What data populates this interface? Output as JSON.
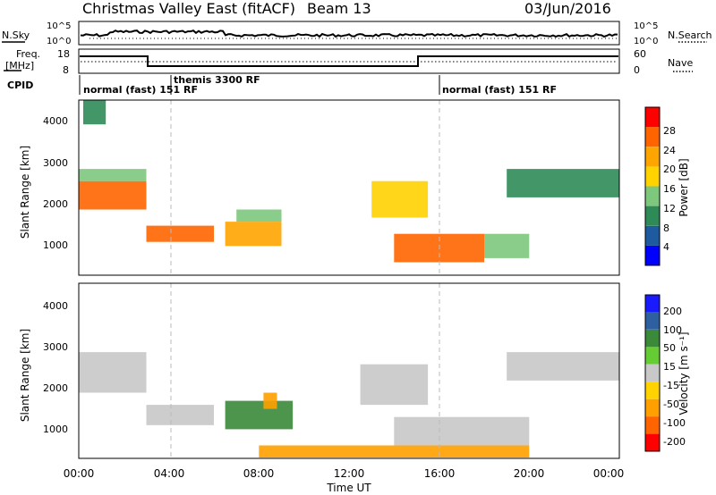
{
  "header": {
    "station": "Christmas Valley East (fitACF)",
    "beam": "Beam 13",
    "date": "03/Jun/2016"
  },
  "noise_panel": {
    "left_label": "N.Sky",
    "right_label": "N.Search",
    "left_ticks": [
      "10^5",
      "10^0"
    ],
    "right_ticks": [
      "10^5",
      "10^0"
    ]
  },
  "freq_panel": {
    "left_label_line1": "Freq.",
    "left_label_line2": "[MHz]",
    "right_label": "Nave",
    "left_ticks": [
      "18",
      "8"
    ],
    "right_ticks": [
      "60",
      "0"
    ]
  },
  "cpid": {
    "label": "CPID",
    "segments": [
      "normal (fast) 151 RF",
      "themis 3300 RF",
      "normal (fast) 151 RF"
    ]
  },
  "colors": {
    "ground_scatter": "#c8c8c8",
    "power_scale": [
      "#0000ff",
      "#1e5aa0",
      "#2e8b57",
      "#7dc87d",
      "#ffd200",
      "#ffa500",
      "#ff6400",
      "#ff0000"
    ],
    "velocity_scale": [
      "#1a1aff",
      "#2e5fa0",
      "#3a8a3a",
      "#66cc33",
      "#c8c8c8",
      "#ffd200",
      "#ffa000",
      "#ff6400",
      "#ff0000"
    ]
  },
  "chart_data": [
    {
      "type": "heatmap",
      "name": "power",
      "ylabel": "Slant Range [km]",
      "colorbar_label": "Power [dB]",
      "colorbar_ticks": [
        "28",
        "24",
        "20",
        "16",
        "12",
        "8",
        "4"
      ],
      "y_ticks": [
        "4000",
        "3000",
        "2000",
        "1000"
      ],
      "ylim": [
        180,
        4500
      ],
      "features": [
        {
          "t": [
            0.0,
            3.0
          ],
          "r": [
            1800,
            2500
          ],
          "level": 27
        },
        {
          "t": [
            0.0,
            3.0
          ],
          "r": [
            2500,
            2800
          ],
          "level": 14
        },
        {
          "t": [
            0.2,
            1.2
          ],
          "r": [
            3900,
            4500
          ],
          "level": 10
        },
        {
          "t": [
            3.0,
            6.0
          ],
          "r": [
            1000,
            1400
          ],
          "level": 26
        },
        {
          "t": [
            6.5,
            9.0
          ],
          "r": [
            900,
            1500
          ],
          "level": 24
        },
        {
          "t": [
            7.0,
            9.0
          ],
          "r": [
            1500,
            1800
          ],
          "level": 14
        },
        {
          "t": [
            13.0,
            15.5
          ],
          "r": [
            1600,
            2500
          ],
          "level": 20
        },
        {
          "t": [
            14.0,
            18.0
          ],
          "r": [
            500,
            1200
          ],
          "level": 28
        },
        {
          "t": [
            18.0,
            20.0
          ],
          "r": [
            600,
            1200
          ],
          "level": 16
        },
        {
          "t": [
            19.0,
            24.0
          ],
          "r": [
            2100,
            2800
          ],
          "level": 12
        }
      ]
    },
    {
      "type": "heatmap",
      "name": "velocity",
      "ylabel": "Slant Range [km]",
      "xlabel": "Time UT",
      "colorbar_label": "Velocity [m s⁻¹]",
      "colorbar_ticks": [
        "200",
        "100",
        "50",
        "15",
        "-15",
        "-50",
        "-100",
        "-200"
      ],
      "y_ticks": [
        "4000",
        "3000",
        "2000",
        "1000"
      ],
      "x_ticks": [
        "00:00",
        "04:00",
        "08:00",
        "12:00",
        "16:00",
        "20:00",
        "00:00"
      ],
      "ylim": [
        180,
        4500
      ],
      "features": [
        {
          "t": [
            0.0,
            3.0
          ],
          "r": [
            1800,
            2800
          ],
          "velocity": 0
        },
        {
          "t": [
            3.0,
            6.0
          ],
          "r": [
            1000,
            1500
          ],
          "velocity": 0
        },
        {
          "t": [
            6.5,
            9.5
          ],
          "r": [
            900,
            1600
          ],
          "velocity": 40
        },
        {
          "t": [
            8.2,
            8.8
          ],
          "r": [
            1400,
            1800
          ],
          "velocity": -70
        },
        {
          "t": [
            12.5,
            15.5
          ],
          "r": [
            1500,
            2500
          ],
          "velocity": 0
        },
        {
          "t": [
            14.0,
            20.0
          ],
          "r": [
            500,
            1200
          ],
          "velocity": 0
        },
        {
          "t": [
            19.0,
            24.0
          ],
          "r": [
            2100,
            2800
          ],
          "velocity": 0
        },
        {
          "t": [
            8.0,
            20.0
          ],
          "r": [
            200,
            500
          ],
          "velocity": -60
        }
      ]
    }
  ]
}
